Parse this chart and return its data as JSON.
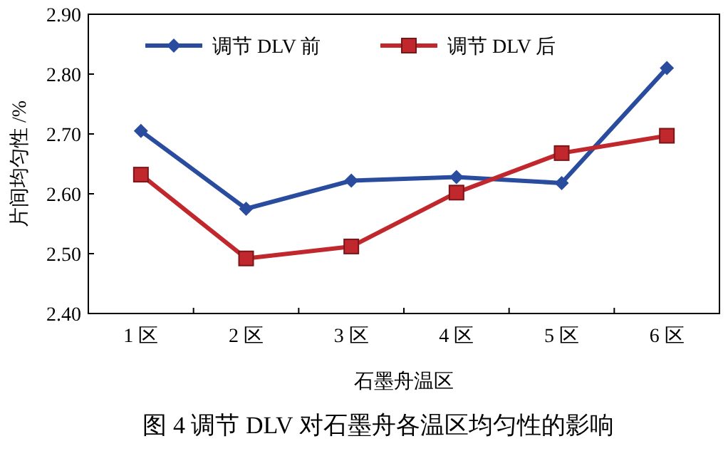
{
  "chart_data": {
    "type": "line",
    "title": "图 4 调节 DLV 对石墨舟各温区均匀性的影响",
    "xlabel": "石墨舟温区",
    "ylabel": "片间均匀性 /%",
    "categories": [
      "1 区",
      "2 区",
      "3 区",
      "4 区",
      "5 区",
      "6 区"
    ],
    "series": [
      {
        "name": "调节 DLV 前",
        "color": "#2a4c9e",
        "marker": "diamond",
        "values": [
          2.705,
          2.575,
          2.622,
          2.628,
          2.618,
          2.81
        ]
      },
      {
        "name": "调节 DLV 后",
        "color": "#c0282d",
        "marker": "square",
        "values": [
          2.632,
          2.492,
          2.512,
          2.602,
          2.668,
          2.697
        ]
      }
    ],
    "ylim": [
      2.4,
      2.9
    ],
    "yticks": [
      {
        "value": 2.4,
        "label": "2.40"
      },
      {
        "value": 2.5,
        "label": "2.50"
      },
      {
        "value": 2.6,
        "label": "2.60"
      },
      {
        "value": 2.7,
        "label": "2.70"
      },
      {
        "value": 2.8,
        "label": "2.80"
      },
      {
        "value": 2.9,
        "label": "2.90"
      }
    ],
    "grid": false,
    "legend": "top left",
    "line_style": "solid"
  }
}
